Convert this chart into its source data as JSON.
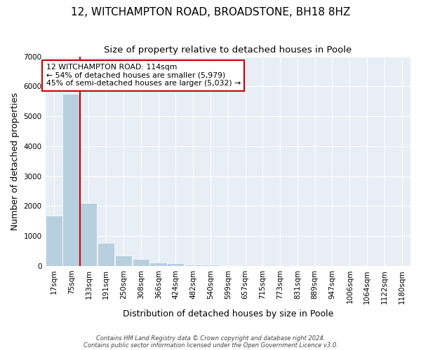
{
  "title": "12, WITCHAMPTON ROAD, BROADSTONE, BH18 8HZ",
  "subtitle": "Size of property relative to detached houses in Poole",
  "xlabel": "Distribution of detached houses by size in Poole",
  "ylabel": "Number of detached properties",
  "footnote1": "Contains HM Land Registry data © Crown copyright and database right 2024.",
  "footnote2": "Contains public sector information licensed under the Open Government Licence v3.0.",
  "bar_color": "#b8cfe0",
  "bg_color": "#e8eef5",
  "annotation_text": "12 WITCHAMPTON ROAD: 114sqm\n← 54% of detached houses are smaller (5,979)\n45% of semi-detached houses are larger (5,032) →",
  "vline_color": "#cc0000",
  "box_edge_color": "#cc0000",
  "categories": [
    "17sqm",
    "75sqm",
    "133sqm",
    "191sqm",
    "250sqm",
    "308sqm",
    "366sqm",
    "424sqm",
    "482sqm",
    "540sqm",
    "599sqm",
    "657sqm",
    "715sqm",
    "773sqm",
    "831sqm",
    "889sqm",
    "947sqm",
    "1006sqm",
    "1064sqm",
    "1122sqm",
    "1180sqm"
  ],
  "bin_edges": [
    17,
    75,
    133,
    191,
    250,
    308,
    366,
    424,
    482,
    540,
    599,
    657,
    715,
    773,
    831,
    889,
    947,
    1006,
    1064,
    1122,
    1180
  ],
  "bin_width": 58,
  "values": [
    1680,
    5750,
    2100,
    780,
    360,
    230,
    120,
    90,
    55,
    50,
    28,
    0,
    0,
    0,
    0,
    0,
    0,
    0,
    0,
    0,
    0
  ],
  "vline_xbin": 1,
  "ylim": [
    0,
    7000
  ],
  "yticks": [
    0,
    1000,
    2000,
    3000,
    4000,
    5000,
    6000,
    7000
  ],
  "grid_color": "#ffffff",
  "title_fontsize": 11,
  "subtitle_fontsize": 9.5,
  "axis_label_fontsize": 9,
  "tick_fontsize": 7.5,
  "footnote_fontsize": 6
}
